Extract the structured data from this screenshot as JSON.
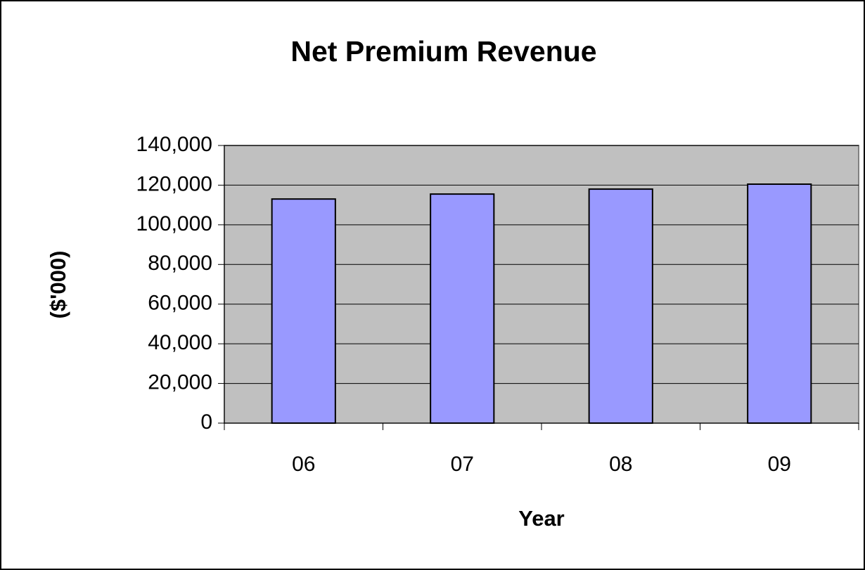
{
  "chart_data": {
    "type": "bar",
    "title": "Net Premium Revenue",
    "x_label": "Year",
    "y_label": "($'000)",
    "categories": [
      "06",
      "07",
      "08",
      "09"
    ],
    "values": [
      113000,
      115500,
      118000,
      120500
    ],
    "color": "#9999ff",
    "plot_background": "#c0c0c0",
    "ylim": [
      0,
      140000
    ],
    "yticks": [
      0,
      {
        "value": 20000,
        "label": "20,000"
      },
      {
        "value": 40000,
        "label": "40,000"
      },
      {
        "value": 60000,
        "label": "60,000"
      },
      {
        "value": 80000,
        "label": "80,000"
      },
      {
        "value": 100000,
        "label": "100,000"
      },
      {
        "value": 120000,
        "label": "120,000"
      },
      {
        "value": 140000,
        "label": "140,000"
      }
    ],
    "grid": true
  }
}
